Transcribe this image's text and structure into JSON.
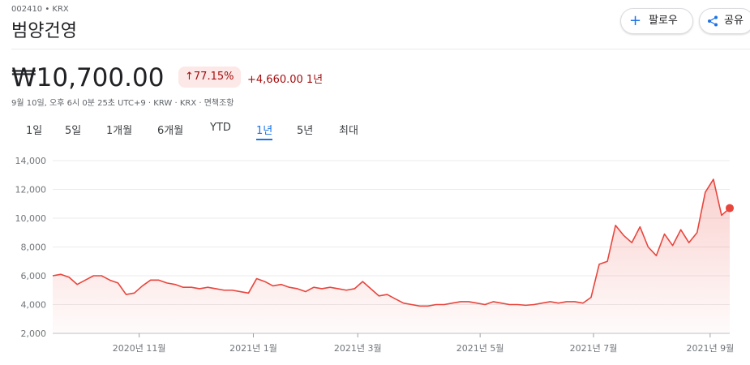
{
  "header": {
    "ticker": "002410 • KRX",
    "name": "범양건영"
  },
  "buttons": {
    "follow": "팔로우",
    "share": "공유"
  },
  "price": {
    "value": "₩10,700.00",
    "change_percent": "77.15%",
    "change_value": "+4,660.00 1년"
  },
  "timestamp": "9월 10일, 오후 6시 0분 25초 UTC+9 · KRW · KRX · 면책조항",
  "tabs": [
    "1일",
    "5일",
    "1개월",
    "6개월",
    "YTD",
    "1년",
    "5년",
    "최대"
  ],
  "active_tab": "1년",
  "chart_data": {
    "type": "line",
    "color": "#e8453c",
    "grid": true,
    "values": [
      6000,
      6100,
      5900,
      5400,
      5700,
      6000,
      6000,
      5700,
      5500,
      4700,
      4800,
      5300,
      5700,
      5700,
      5500,
      5400,
      5200,
      5200,
      5100,
      5200,
      5100,
      5000,
      5000,
      4900,
      4800,
      5800,
      5600,
      5300,
      5400,
      5200,
      5100,
      4900,
      5200,
      5100,
      5200,
      5100,
      5000,
      5100,
      5600,
      5100,
      4600,
      4700,
      4400,
      4100,
      4000,
      3900,
      3900,
      4000,
      4000,
      4100,
      4200,
      4200,
      4100,
      4000,
      4200,
      4100,
      4000,
      4000,
      3950,
      4000,
      4100,
      4200,
      4100,
      4200,
      4200,
      4100,
      4500,
      6800,
      7000,
      9500,
      8800,
      8300,
      9400,
      8000,
      7400,
      8900,
      8100,
      9200,
      8300,
      9000,
      11800,
      12700,
      10200,
      10700
    ],
    "xlim": [
      0,
      83
    ],
    "xticks": [
      {
        "value": 10.6,
        "label": "2020년 11월"
      },
      {
        "value": 24.6,
        "label": "2021년 1월"
      },
      {
        "value": 37.4,
        "label": "2021년 3월"
      },
      {
        "value": 52.4,
        "label": "2021년 5월"
      },
      {
        "value": 66.3,
        "label": "2021년 7월"
      },
      {
        "value": 80.6,
        "label": "2021년 9월"
      }
    ],
    "ylim": [
      2000,
      14000
    ],
    "yticks": [
      {
        "value": 2000,
        "label": "2,000"
      },
      {
        "value": 4000,
        "label": "4,000"
      },
      {
        "value": 6000,
        "label": "6,000"
      },
      {
        "value": 8000,
        "label": "8,000"
      },
      {
        "value": 10000,
        "label": "10,000"
      },
      {
        "value": 12000,
        "label": "12,000"
      },
      {
        "value": 14000,
        "label": "14,000"
      }
    ]
  }
}
